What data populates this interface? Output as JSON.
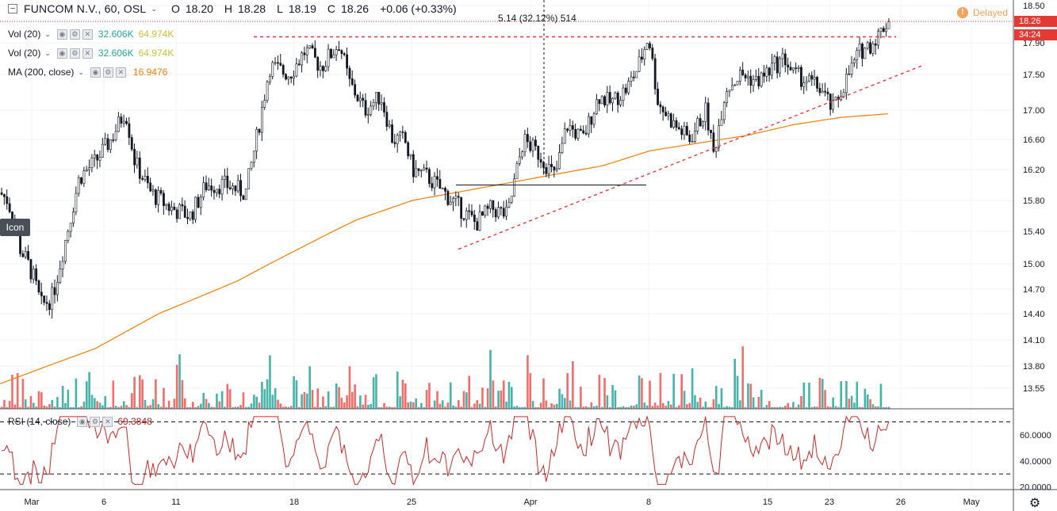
{
  "header": {
    "symbol": "FUNCOM N.V., 60, OSL",
    "open_label": "O",
    "open": "18.20",
    "high_label": "H",
    "high": "18.28",
    "low_label": "L",
    "low": "18.19",
    "close_label": "C",
    "close": "18.26",
    "change": "+0.06 (+0.33%)"
  },
  "measure_text": "5.14 (32.12%) 514",
  "status": {
    "delayed": "Delayed",
    "delayed_icon": "!"
  },
  "tooltip": "Icon",
  "indicators": [
    {
      "name": "Vol (20)",
      "value1": "32.606K",
      "value2": "64.974K"
    },
    {
      "name": "Vol (20)",
      "value1": "32.606K",
      "value2": "64.974K"
    },
    {
      "name": "MA (200, close)",
      "value": "16.9476"
    }
  ],
  "rsi": {
    "name": "RSI (14, close)",
    "value": "69.3848"
  },
  "price_labels": {
    "last": "18.26",
    "countdown": "34:24"
  },
  "colors": {
    "up": "#26a69a",
    "down": "#ef5350",
    "candle": "#131722",
    "ma": "#f57c00",
    "rsi": "#c62828",
    "trend": "#e53935",
    "last_price": "#e53935"
  },
  "chart_data": {
    "type": "candlestick",
    "price_axis": {
      "ticks": [
        "18.50",
        "18.26",
        "17.90",
        "17.50",
        "17.00",
        "16.60",
        "16.20",
        "15.80",
        "15.40",
        "15.00",
        "14.70",
        "14.40",
        "14.10",
        "13.80",
        "13.55"
      ],
      "range": [
        13.3,
        18.5
      ]
    },
    "rsi_axis": {
      "ticks": [
        "60.0000",
        "40.0000",
        "20.0000"
      ],
      "bands": [
        70,
        30
      ],
      "range": [
        18,
        80
      ]
    },
    "x_axis": {
      "ticks": [
        "Mar",
        "6",
        "11",
        "18",
        "25",
        "Apr",
        "8",
        "15",
        "23",
        "26",
        "May"
      ]
    },
    "ma_value": 16.9476,
    "rsi_value": 69.3848,
    "last_price": 18.26,
    "key_levels": [
      18.0,
      16.0
    ],
    "trendline_from": [
      15.18,
      17.62
    ]
  }
}
